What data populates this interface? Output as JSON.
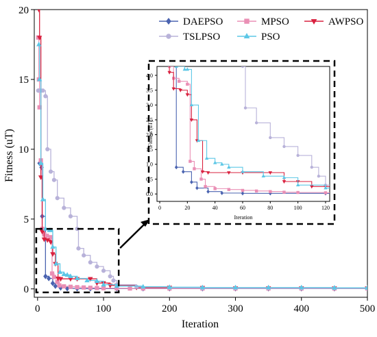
{
  "chart_data": {
    "type": "line",
    "xlabel": "Iteration",
    "ylabel": "Fitness (uT)",
    "xlim": [
      -5,
      500
    ],
    "ylim": [
      -0.6,
      20
    ],
    "xticks": [
      0,
      100,
      200,
      300,
      400,
      500
    ],
    "yticks": [
      0,
      5,
      10,
      15,
      20
    ],
    "xtick_labels": [
      "0",
      "100",
      "200",
      "300",
      "400",
      "500"
    ],
    "ytick_labels": [
      "0",
      "5",
      "10",
      "15",
      "20"
    ],
    "legend": {
      "placement": "top-right"
    },
    "series": [
      {
        "name": "DAEPSO",
        "color": "#4a63b0",
        "marker": "diamond",
        "x": [
          3,
          6,
          7,
          12,
          17,
          23,
          27,
          35,
          45,
          60,
          80,
          120,
          160,
          200,
          250,
          300,
          350,
          400,
          450,
          500
        ],
        "y": [
          9.0,
          8.7,
          5.2,
          0.9,
          0.75,
          0.4,
          0.2,
          0.08,
          0.03,
          0.02,
          0.02,
          0.02,
          0.02,
          0.02,
          0.02,
          0.02,
          0.02,
          0.02,
          0.02,
          0.02
        ]
      },
      {
        "name": "MPSO",
        "color": "#ea8fb5",
        "marker": "square",
        "x": [
          1,
          2,
          3,
          5,
          7,
          10,
          14,
          20,
          22,
          25,
          30,
          33,
          40,
          50,
          60,
          70,
          80,
          90,
          100,
          120,
          140,
          160,
          200,
          250,
          300,
          350,
          400,
          450,
          500
        ],
        "y": [
          18.0,
          15.0,
          13.0,
          9.2,
          4.3,
          3.9,
          3.8,
          3.7,
          1.1,
          0.85,
          0.5,
          0.25,
          0.18,
          0.15,
          0.12,
          0.1,
          0.08,
          0.06,
          0.05,
          0.04,
          0.03,
          0.03,
          0.03,
          0.03,
          0.03,
          0.03,
          0.03,
          0.03,
          0.03
        ]
      },
      {
        "name": "AWPSO",
        "color": "#d9213f",
        "marker": "triangle-down",
        "x": [
          2,
          3,
          5,
          7,
          10,
          15,
          20,
          23,
          27,
          31,
          35,
          50,
          60,
          80,
          90,
          100,
          110,
          120,
          150,
          200,
          250,
          300,
          350,
          400,
          450,
          500
        ],
        "y": [
          20.0,
          18.0,
          8.0,
          4.1,
          3.55,
          3.5,
          3.35,
          2.5,
          1.8,
          0.75,
          0.72,
          0.72,
          0.72,
          0.72,
          0.42,
          0.42,
          0.25,
          0.25,
          0.1,
          0.1,
          0.08,
          0.05,
          0.05,
          0.05,
          0.05,
          0.05
        ]
      },
      {
        "name": "TSLPSO",
        "color": "#b8b2d9",
        "marker": "circle",
        "x": [
          1,
          2,
          3,
          5,
          8,
          12,
          15,
          20,
          25,
          30,
          40,
          50,
          60,
          62,
          70,
          80,
          90,
          100,
          110,
          115,
          120,
          150,
          200,
          250,
          300,
          350,
          400,
          450,
          500
        ],
        "y": [
          14.2,
          14.2,
          14.2,
          14.2,
          14.2,
          13.8,
          10.0,
          8.4,
          7.8,
          6.5,
          5.8,
          5.2,
          4.3,
          2.9,
          2.4,
          1.9,
          1.6,
          1.3,
          0.9,
          0.6,
          0.3,
          0.15,
          0.08,
          0.05,
          0.04,
          0.04,
          0.04,
          0.04,
          0.04
        ]
      },
      {
        "name": "PSO",
        "color": "#5cc7e6",
        "marker": "triangle-up",
        "x": [
          2,
          3,
          5,
          8,
          12,
          18,
          20,
          23,
          28,
          34,
          40,
          45,
          50,
          60,
          75,
          90,
          100,
          120,
          160,
          200,
          250,
          300,
          350,
          400,
          450,
          500
        ],
        "y": [
          17.5,
          15.0,
          9.0,
          6.4,
          4.3,
          4.2,
          4.2,
          3.0,
          1.8,
          1.2,
          1.05,
          1.0,
          0.9,
          0.75,
          0.6,
          0.55,
          0.3,
          0.2,
          0.15,
          0.12,
          0.1,
          0.1,
          0.1,
          0.1,
          0.08,
          0.08
        ]
      }
    ],
    "inset": {
      "xlabel": "Iteration",
      "ylabel": "Fitness (uT)",
      "xlim": [
        -2,
        123
      ],
      "ylim": [
        -0.25,
        4.3
      ],
      "xticks": [
        0,
        20,
        40,
        60,
        80,
        100,
        120
      ],
      "yticks": [
        0.0,
        0.5,
        1.0,
        1.5,
        2.0,
        2.5,
        3.0,
        3.5,
        4.0
      ],
      "xtick_labels": [
        "0",
        "20",
        "40",
        "60",
        "80",
        "100",
        "120"
      ],
      "ytick_labels": [
        "0.0",
        "0.5",
        "1.0",
        "1.5",
        "2.0",
        "2.5",
        "3.0",
        "3.5",
        "4.0"
      ]
    }
  }
}
